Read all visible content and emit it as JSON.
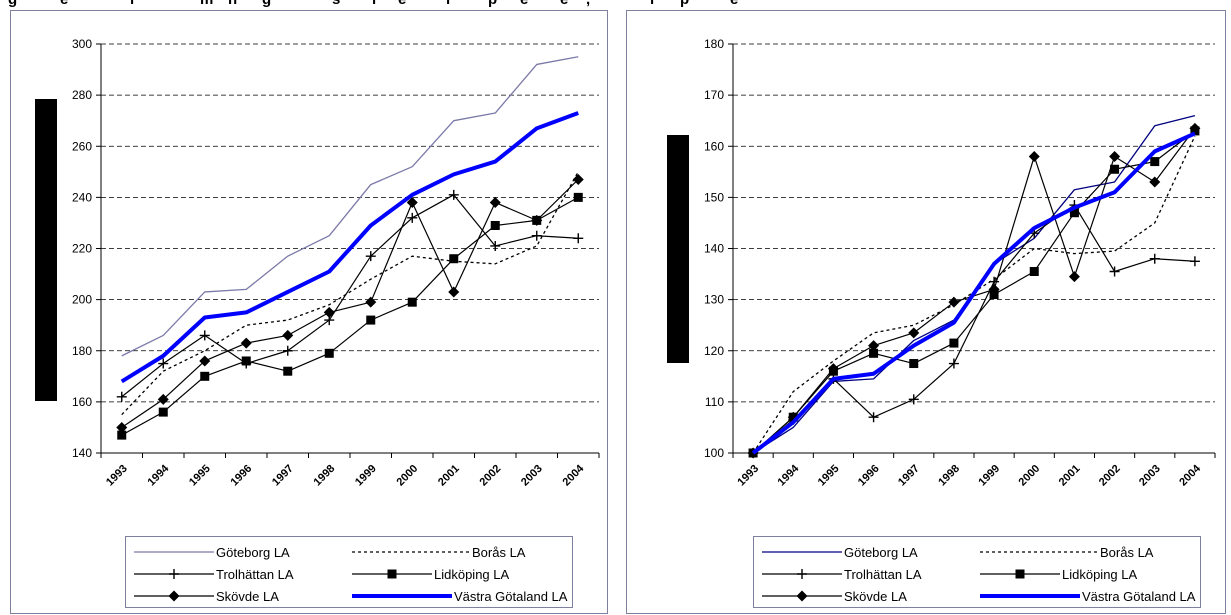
{
  "title_fragments": [
    "g",
    "e",
    "r",
    "m",
    "n",
    "g",
    "s",
    "r",
    "e",
    "r",
    "p",
    "e",
    "e",
    ",",
    "r",
    "p",
    "e"
  ],
  "legend": [
    {
      "label": "Göteborg LA"
    },
    {
      "label": "Borås LA"
    },
    {
      "label": "Trolhättan LA"
    },
    {
      "label": "Lidköping LA"
    },
    {
      "label": "Skövde LA"
    },
    {
      "label": "Västra Götaland LA"
    }
  ],
  "chart_data": [
    {
      "type": "line",
      "x": [
        "1993",
        "1994",
        "1995",
        "1996",
        "1997",
        "1998",
        "1999",
        "2000",
        "2001",
        "2002",
        "2003",
        "2004"
      ],
      "x_tick_labels": [
        "1993",
        "1994",
        "1995",
        "1996",
        "1997",
        "1998",
        "1999",
        "2000",
        "2001",
        "2002",
        "2003",
        "2004"
      ],
      "ylim": [
        140,
        300
      ],
      "yticks": [
        140,
        160,
        180,
        200,
        220,
        240,
        260,
        280,
        300
      ],
      "grid": true,
      "legend_position": "bottom",
      "series": [
        {
          "name": "Göteborg LA",
          "color": "#7b79a8",
          "style": "thin",
          "values": [
            178,
            186,
            203,
            204,
            217,
            225,
            245,
            252,
            270,
            273,
            292,
            295
          ]
        },
        {
          "name": "Borås LA",
          "color": "#000000",
          "style": "dotted",
          "values": [
            155,
            172,
            180,
            190,
            192,
            198,
            208,
            217,
            215,
            214,
            221,
            250
          ]
        },
        {
          "name": "Trolhättan LA",
          "color": "#000000",
          "style": "plus",
          "values": [
            162,
            175,
            186,
            175,
            180,
            192,
            217,
            232,
            241,
            221,
            225,
            224
          ]
        },
        {
          "name": "Lidköping LA",
          "color": "#000000",
          "style": "square",
          "values": [
            147,
            156,
            170,
            176,
            172,
            179,
            192,
            199,
            216,
            229,
            231,
            240
          ]
        },
        {
          "name": "Skövde LA",
          "color": "#000000",
          "style": "diamond",
          "values": [
            150,
            161,
            176,
            183,
            186,
            195,
            199,
            238,
            203,
            238,
            231,
            247
          ]
        },
        {
          "name": "Västra Götaland LA",
          "color": "#0000ff",
          "style": "thick",
          "values": [
            168,
            178,
            193,
            195,
            203,
            211,
            229,
            241,
            249,
            254,
            267,
            273
          ]
        }
      ]
    },
    {
      "type": "line",
      "x": [
        "1993",
        "1994",
        "1995",
        "1996",
        "1997",
        "1998",
        "1999",
        "2000",
        "2001",
        "2002",
        "2003",
        "2004"
      ],
      "x_tick_labels": [
        "1993",
        "1994",
        "1995",
        "1996",
        "1997",
        "1998",
        "1999",
        "2000",
        "2001",
        "2002",
        "2003",
        "2004"
      ],
      "ylim": [
        100,
        180
      ],
      "yticks": [
        100,
        110,
        120,
        130,
        140,
        150,
        160,
        170,
        180
      ],
      "grid": true,
      "legend_position": "bottom",
      "series": [
        {
          "name": "Göteborg LA",
          "color": "#000080",
          "style": "thin",
          "values": [
            100,
            105,
            114,
            114.5,
            122,
            126,
            137,
            142,
            151.5,
            153,
            164,
            166
          ]
        },
        {
          "name": "Borås LA",
          "color": "#000000",
          "style": "dotted",
          "values": [
            100,
            112,
            118,
            123.5,
            125,
            129,
            134,
            140,
            139,
            139.5,
            145,
            162
          ]
        },
        {
          "name": "Trolhättan LA",
          "color": "#000000",
          "style": "plus",
          "values": [
            100,
            106.5,
            114.5,
            107,
            110.5,
            117.5,
            133.5,
            143,
            148.5,
            135.5,
            138,
            137.5
          ]
        },
        {
          "name": "Lidköping LA",
          "color": "#000000",
          "style": "square",
          "values": [
            100,
            107,
            116,
            119.5,
            117.5,
            121.5,
            131,
            135.5,
            147,
            155.5,
            157,
            163
          ]
        },
        {
          "name": "Skövde LA",
          "color": "#000000",
          "style": "diamond",
          "values": [
            100,
            107,
            116.5,
            121,
            123.5,
            129.5,
            132,
            158,
            134.5,
            158,
            153,
            163.5
          ]
        },
        {
          "name": "Västra Götaland LA",
          "color": "#0000ff",
          "style": "thick",
          "values": [
            100,
            106,
            114.5,
            115.5,
            121,
            125.5,
            137,
            144,
            148,
            151,
            159,
            162.5
          ]
        }
      ]
    }
  ]
}
